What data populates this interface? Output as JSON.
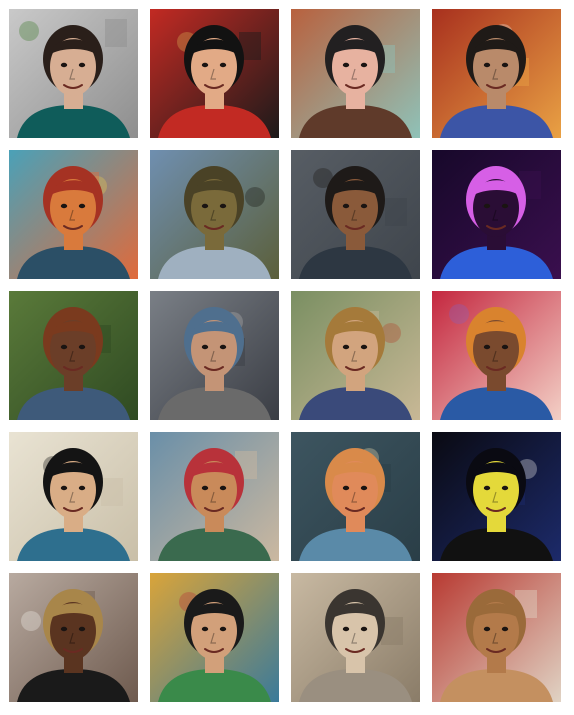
{
  "gallery": {
    "tiles": [
      {
        "name": "portrait-3d-man-leaf-wreath",
        "bg": "#c9c9c9",
        "bg2": "#8e8e8e",
        "skin": "#d7ae93",
        "hair": "#2a1f1a",
        "shirt": "#0f5c5a",
        "accent": "#3f7c2e",
        "text": ""
      },
      {
        "name": "portrait-woman-red-floral",
        "bg": "#c22a23",
        "bg2": "#1c1a1a",
        "skin": "#e2aa86",
        "hair": "#121212",
        "shirt": "#c22a23",
        "accent": "#d9b154",
        "text": ""
      },
      {
        "name": "portrait-painted-woman-room",
        "bg": "#b8613e",
        "bg2": "#8fc2b8",
        "skin": "#e7b2a0",
        "hair": "#222021",
        "shirt": "#5f3a2a",
        "accent": "#8db9da",
        "text": ""
      },
      {
        "name": "photo-two-people-sitting-red-scene",
        "bg": "#a8301e",
        "bg2": "#e9a144",
        "skin": "#b98a6a",
        "hair": "#1f1a17",
        "shirt": "#3c55a6",
        "accent": "#ece6dd",
        "text": ""
      },
      {
        "name": "portrait-psychedelic-bearded-man",
        "bg": "#4aa1b8",
        "bg2": "#e06a3b",
        "skin": "#d97a3c",
        "hair": "#a53223",
        "shirt": "#2b4f66",
        "accent": "#e9c94f",
        "text": ""
      },
      {
        "name": "portrait-video-game-bald-man",
        "bg": "#6f8fb0",
        "bg2": "#5b5f3a",
        "skin": "#7a6a3a",
        "hair": "#4a4226",
        "shirt": "#9fb0c0",
        "accent": "#1a1a14",
        "text": ""
      },
      {
        "name": "portrait-3d-bearded-man-dark-bg",
        "bg": "#575d64",
        "bg2": "#3f454c",
        "skin": "#8a5a3a",
        "hair": "#1e1a18",
        "shirt": "#2d3742",
        "accent": "#1e1a18",
        "text": ""
      },
      {
        "name": "portrait-neon-line-man-glasses",
        "bg": "#17082a",
        "bg2": "#3a0f4e",
        "skin": "#2a0d35",
        "hair": "#d65fe6",
        "shirt": "#2d5fd9",
        "accent": "#ff4fb0",
        "text": ""
      },
      {
        "name": "portrait-woman-curly-hair-garden",
        "bg": "#5a7a3a",
        "bg2": "#2f4a22",
        "skin": "#6b3e28",
        "hair": "#7a3a1e",
        "shirt": "#3e5a7a",
        "accent": "#d8b060",
        "text": ""
      },
      {
        "name": "photo-anime-spiky-hair-selfie",
        "bg": "#7a7f86",
        "bg2": "#3a3d44",
        "skin": "#c49476",
        "hair": "#4f6f8e",
        "shirt": "#6a6a6a",
        "accent": "#b5b5b5",
        "text": ""
      },
      {
        "name": "portrait-medieval-painting-man",
        "bg": "#7a8f62",
        "bg2": "#c8b896",
        "skin": "#d2a47e",
        "hair": "#a57a3a",
        "shirt": "#3a4a7a",
        "accent": "#b3462a",
        "text": ""
      },
      {
        "name": "portrait-comic-man-orange-hat-glasses",
        "bg": "#c4273f",
        "bg2": "#f3d0c6",
        "skin": "#7a4a2e",
        "hair": "#d9832e",
        "shirt": "#2a5aa5",
        "accent": "#8a5fb9",
        "text": ""
      },
      {
        "name": "portrait-cartoon-man-comic-style",
        "bg": "#e9e3d3",
        "bg2": "#c9bfa8",
        "skin": "#d9ad86",
        "hair": "#141414",
        "shirt": "#2e6f8e",
        "accent": "#141414",
        "text": ""
      },
      {
        "name": "portrait-crayon-man-red-beanie",
        "bg": "#6a8fa8",
        "bg2": "#cbb8a0",
        "skin": "#c98a5a",
        "hair": "#b8323a",
        "shirt": "#3a6a4e",
        "accent": "#e6c44a",
        "text": ""
      },
      {
        "name": "portrait-chalk-man-smiling",
        "bg": "#3d5560",
        "bg2": "#2a3e47",
        "skin": "#e08a5a",
        "hair": "#d98a4a",
        "shirt": "#5a8aa8",
        "accent": "#e9d9b0",
        "text": ""
      },
      {
        "name": "portrait-ascii-yellow-man",
        "bg": "#0a0a12",
        "bg2": "#1c2a6a",
        "skin": "#e4d93a",
        "hair": "#0a0a12",
        "shirt": "#111111",
        "accent": "#e8e8e8",
        "text": ""
      },
      {
        "name": "portrait-3d-woman-blonde-bob",
        "bg": "#b8aaa0",
        "bg2": "#6e5a4e",
        "skin": "#5a3420",
        "hair": "#a8864a",
        "shirt": "#1a1a1a",
        "accent": "#f2efe8",
        "text": ""
      },
      {
        "name": "portrait-mosaic-woman-green-scarf",
        "bg": "#d9a43a",
        "bg2": "#3a7a9a",
        "skin": "#d2a07a",
        "hair": "#1a1a1a",
        "shirt": "#3a8a4a",
        "accent": "#b8323a",
        "text": ""
      },
      {
        "name": "portrait-sketch-woman-sunglasses",
        "bg": "#c8b9a2",
        "bg2": "#8a7c68",
        "skin": "#d8c4aa",
        "hair": "#3a3530",
        "shirt": "#9a8f80",
        "accent": "#e9e3d6",
        "text": ""
      },
      {
        "name": "portrait-sand-sculpture-man-cap",
        "bg": "#b83a32",
        "bg2": "#e0d3c4",
        "skin": "#b37a4a",
        "hair": "#9a6a3a",
        "shirt": "#c49060",
        "accent": "#7a4a2a",
        "text": ""
      }
    ]
  }
}
